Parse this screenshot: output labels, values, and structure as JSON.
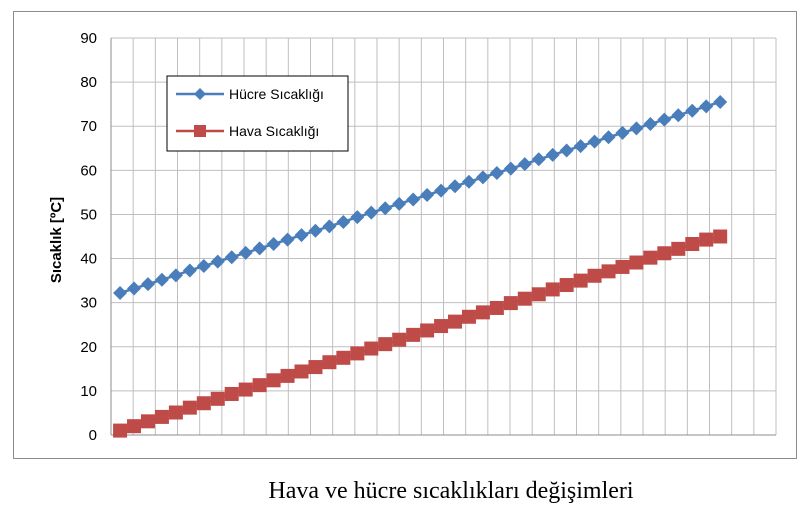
{
  "chart_data": {
    "type": "line",
    "xlabel": "",
    "ylabel": "Sıcaklık [ºC]",
    "ylim": [
      0,
      90
    ],
    "yticks": [
      0,
      10,
      20,
      30,
      40,
      50,
      60,
      70,
      80,
      90
    ],
    "grid": true,
    "legend_position": "top-left",
    "x": [
      1,
      2,
      3,
      4,
      5,
      6,
      7,
      8,
      9,
      10,
      11,
      12,
      13,
      14,
      15,
      16,
      17,
      18,
      19,
      20,
      21,
      22,
      23,
      24,
      25,
      26,
      27,
      28,
      29,
      30,
      31,
      32,
      33,
      34,
      35,
      36,
      37,
      38,
      39,
      40,
      41,
      42,
      43,
      44
    ],
    "series": [
      {
        "name": "Hücre Sıcaklığı",
        "color": "#4a7ebb",
        "marker": "diamond",
        "values": [
          32.2,
          33.2,
          34.2,
          35.2,
          36.2,
          37.3,
          38.3,
          39.3,
          40.3,
          41.3,
          42.3,
          43.3,
          44.3,
          45.3,
          46.3,
          47.3,
          48.3,
          49.4,
          50.4,
          51.4,
          52.4,
          53.4,
          54.4,
          55.4,
          56.4,
          57.4,
          58.4,
          59.4,
          60.4,
          61.4,
          62.5,
          63.5,
          64.5,
          65.5,
          66.5,
          67.5,
          68.5,
          69.5,
          70.5,
          71.5,
          72.5,
          73.5,
          74.5,
          75.5
        ]
      },
      {
        "name": "Hava Sıcaklığı",
        "color": "#be4b48",
        "marker": "square",
        "values": [
          1.0,
          2.0,
          3.1,
          4.1,
          5.1,
          6.2,
          7.2,
          8.2,
          9.3,
          10.3,
          11.3,
          12.4,
          13.4,
          14.4,
          15.4,
          16.5,
          17.5,
          18.5,
          19.6,
          20.6,
          21.6,
          22.7,
          23.7,
          24.7,
          25.7,
          26.8,
          27.8,
          28.8,
          29.9,
          30.9,
          31.9,
          33.0,
          34.0,
          35.0,
          36.1,
          37.1,
          38.1,
          39.1,
          40.2,
          41.2,
          42.2,
          43.3,
          44.3,
          45.0
        ]
      }
    ]
  },
  "caption": "Hava ve hücre sıcaklıkları değişimleri"
}
